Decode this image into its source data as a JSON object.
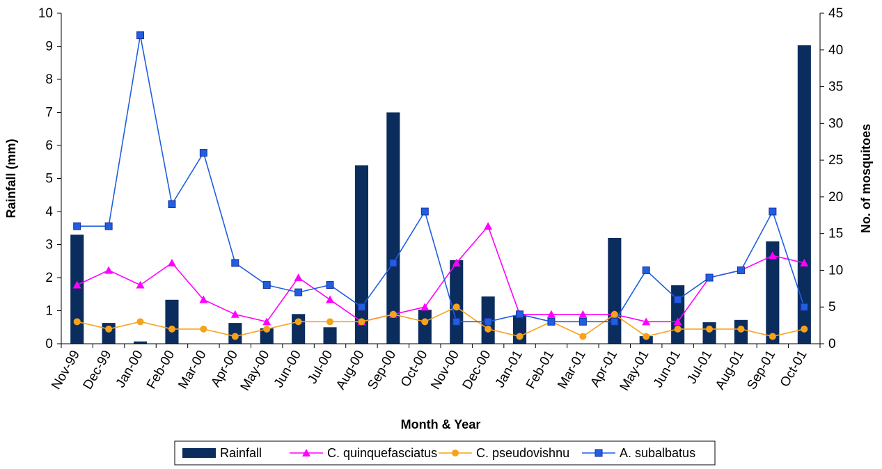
{
  "chart_data": {
    "type": "bar",
    "xlabel": "Month & Year",
    "ylabel": "Rainfall (mm)",
    "y2label": "No. of mosquitoes",
    "ylim": [
      0,
      10
    ],
    "y2lim": [
      0,
      45
    ],
    "yticks": [
      "0",
      "1",
      "2",
      "3",
      "4",
      "5",
      "6",
      "7",
      "8",
      "9",
      "10"
    ],
    "y2ticks": [
      "0",
      "5",
      "10",
      "15",
      "20",
      "25",
      "30",
      "35",
      "40",
      "45"
    ],
    "categories": [
      "Nov-99",
      "Dec-99",
      "Jan-00",
      "Feb-00",
      "Mar-00",
      "Apr-00",
      "May-00",
      "Jun-00",
      "Jul-00",
      "Aug-00",
      "Sep-00",
      "Oct-00",
      "Nov-00",
      "Dec-00",
      "Jan-01",
      "Feb-01",
      "Mar-01",
      "Apr-01",
      "May-01",
      "Jun-01",
      "Jul-01",
      "Aug-01",
      "Sep-01",
      "Oct-01"
    ],
    "grid": false,
    "legend_position": "bottom",
    "series": [
      {
        "name": "Rainfall",
        "type": "bar",
        "axis": "left",
        "color": "#0b2d5e",
        "values": [
          3.3,
          0.63,
          0.07,
          1.33,
          0,
          0.63,
          0.47,
          0.9,
          0.5,
          5.4,
          7.0,
          1.03,
          2.53,
          1.43,
          0.85,
          0,
          0,
          3.2,
          0.23,
          1.77,
          0.65,
          0.72,
          3.1,
          9.03
        ]
      },
      {
        "name": "C. quinquefasciatus",
        "type": "line",
        "axis": "right",
        "color": "#ff00ff",
        "marker": "triangle",
        "values": [
          8,
          10,
          8,
          11,
          6,
          4,
          3,
          9,
          6,
          3,
          4,
          5,
          11,
          16,
          4,
          4,
          4,
          4,
          3,
          3,
          9,
          10,
          12,
          11
        ]
      },
      {
        "name": "C. pseudovishnu",
        "type": "line",
        "axis": "right",
        "color": "#f7a21b",
        "marker": "circle",
        "values": [
          3,
          2,
          3,
          2,
          2,
          1,
          2,
          3,
          3,
          3,
          4,
          3,
          5,
          2,
          1,
          3,
          1,
          4,
          1,
          2,
          2,
          2,
          1,
          2
        ]
      },
      {
        "name": "A. subalbatus",
        "type": "line",
        "axis": "right",
        "color": "#1f5fe0",
        "marker": "square",
        "values": [
          16,
          16,
          42,
          19,
          26,
          11,
          8,
          7,
          8,
          5,
          11,
          18,
          3,
          3,
          4,
          3,
          3,
          3,
          10,
          6,
          9,
          10,
          18,
          5
        ]
      }
    ]
  }
}
